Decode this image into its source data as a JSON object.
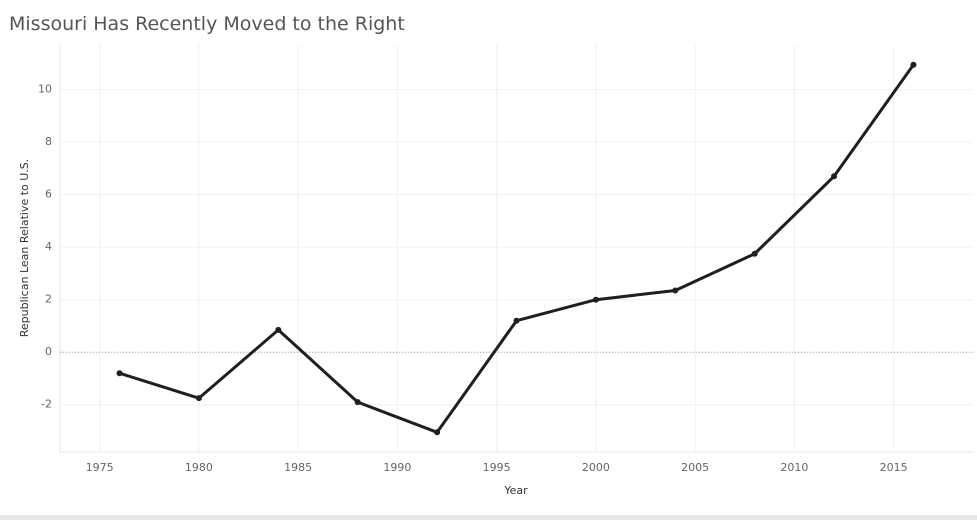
{
  "chart_data": {
    "type": "line",
    "title": "Missouri Has Recently Moved to the Right",
    "x_label": "Year",
    "y_label": "Republican Lean Relative to U.S.",
    "x": [
      1976,
      1980,
      1984,
      1988,
      1992,
      1996,
      2000,
      2004,
      2008,
      2012,
      2016
    ],
    "series": [
      {
        "name": "Republican Lean Relative to U.S.",
        "color": "#1f1f1f",
        "values": [
          -0.8,
          -1.75,
          0.85,
          -1.9,
          -3.05,
          1.2,
          2.0,
          2.35,
          3.75,
          6.7,
          10.95
        ]
      }
    ],
    "xlim": [
      1973,
      2019
    ],
    "xticks": [
      1975,
      1980,
      1985,
      1990,
      1995,
      2000,
      2005,
      2010,
      2015
    ],
    "ylim": [
      -3.8,
      11.7
    ],
    "yticks": [
      -2,
      0,
      2,
      4,
      6,
      8,
      10
    ],
    "grid": true,
    "zero_line": true,
    "markers": true
  }
}
